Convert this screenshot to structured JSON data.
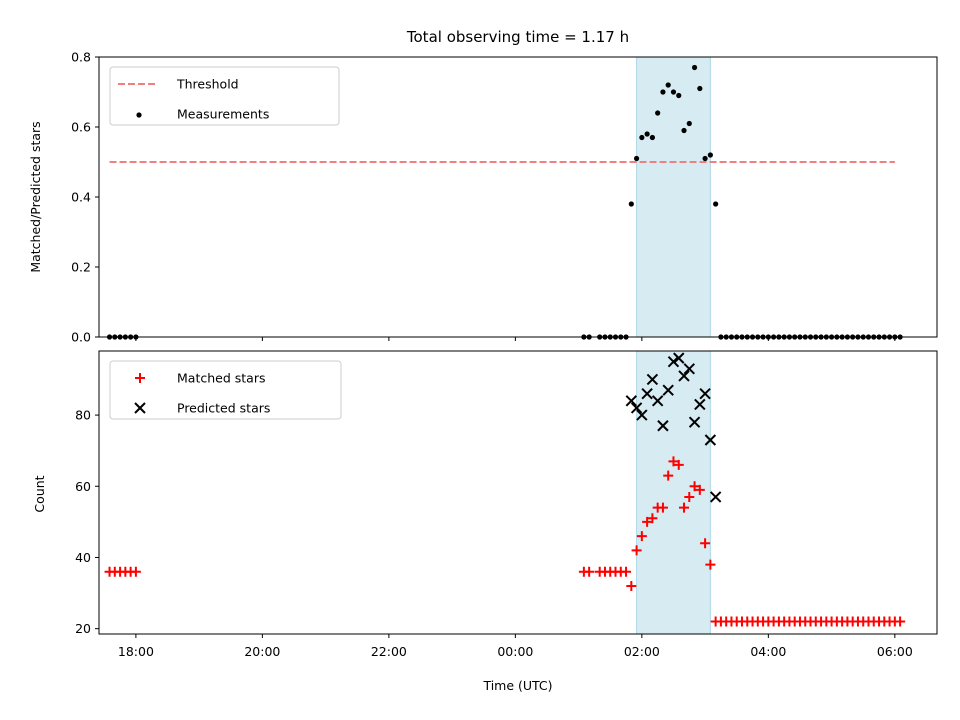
{
  "chart_data": [
    {
      "type": "scatter",
      "title": "Total observing time = 1.17 h",
      "ylabel": "Matched/Predicted stars",
      "xlabel": "",
      "ylim": [
        0,
        0.8
      ],
      "yticks": [
        "0.0",
        "0.2",
        "0.4",
        "0.6",
        "0.8"
      ],
      "xlim": [
        "17:25",
        "06:40"
      ],
      "highlight_span": [
        "01:55",
        "03:05"
      ],
      "legend": {
        "placement": "upper-left",
        "entries": [
          "Threshold",
          "Measurements"
        ]
      },
      "threshold": {
        "name": "Threshold",
        "x": [
          "17:35",
          "06:00"
        ],
        "y": 0.5,
        "color": "#f08080"
      },
      "series": [
        {
          "name": "Measurements",
          "color": "#000000",
          "x": [
            "17:35",
            "17:40",
            "17:45",
            "17:50",
            "17:55",
            "18:00",
            "01:05",
            "01:10",
            "01:20",
            "01:25",
            "01:30",
            "01:35",
            "01:40",
            "01:45",
            "01:50",
            "01:55",
            "02:00",
            "02:05",
            "02:10",
            "02:15",
            "02:20",
            "02:25",
            "02:30",
            "02:35",
            "02:40",
            "02:45",
            "02:50",
            "02:55",
            "03:00",
            "03:05",
            "03:10",
            "03:15",
            "03:20",
            "03:25",
            "03:30",
            "03:35",
            "03:40",
            "03:45",
            "03:50",
            "03:55",
            "04:00",
            "04:05",
            "04:10",
            "04:15",
            "04:20",
            "04:25",
            "04:30",
            "04:35",
            "04:40",
            "04:45",
            "04:50",
            "04:55",
            "05:00",
            "05:05",
            "05:10",
            "05:15",
            "05:20",
            "05:25",
            "05:30",
            "05:35",
            "05:40",
            "05:45",
            "05:50",
            "05:55",
            "06:00",
            "06:05"
          ],
          "y": [
            0,
            0,
            0,
            0,
            0,
            0,
            0,
            0,
            0,
            0,
            0,
            0,
            0,
            0,
            0.38,
            0.51,
            0.57,
            0.58,
            0.57,
            0.64,
            0.7,
            0.72,
            0.7,
            0.69,
            0.59,
            0.61,
            0.77,
            0.71,
            0.51,
            0.52,
            0.38,
            0,
            0,
            0,
            0,
            0,
            0,
            0,
            0,
            0,
            0,
            0,
            0,
            0,
            0,
            0,
            0,
            0,
            0,
            0,
            0,
            0,
            0,
            0,
            0,
            0,
            0,
            0,
            0,
            0,
            0,
            0,
            0,
            0,
            0,
            0
          ]
        }
      ]
    },
    {
      "type": "scatter",
      "title": "",
      "xlabel": "Time (UTC)",
      "ylabel": "Count",
      "ylim": [
        18.5,
        98
      ],
      "yticks": [
        "20",
        "40",
        "60",
        "80"
      ],
      "xlim": [
        "17:25",
        "06:40"
      ],
      "xticks": [
        "18:00",
        "20:00",
        "22:00",
        "00:00",
        "02:00",
        "04:00",
        "06:00"
      ],
      "highlight_span": [
        "01:55",
        "03:05"
      ],
      "legend": {
        "placement": "upper-left",
        "entries": [
          "Matched stars",
          "Predicted stars"
        ]
      },
      "series": [
        {
          "name": "Matched stars",
          "color": "#ff0000",
          "marker": "plus",
          "x": [
            "17:35",
            "17:40",
            "17:45",
            "17:50",
            "17:55",
            "18:00",
            "01:05",
            "01:10",
            "01:20",
            "01:25",
            "01:30",
            "01:35",
            "01:40",
            "01:45",
            "01:50",
            "01:55",
            "02:00",
            "02:05",
            "02:10",
            "02:15",
            "02:20",
            "02:25",
            "02:30",
            "02:35",
            "02:40",
            "02:45",
            "02:50",
            "02:55",
            "03:00",
            "03:05",
            "03:10",
            "03:15",
            "03:20",
            "03:25",
            "03:30",
            "03:35",
            "03:40",
            "03:45",
            "03:50",
            "03:55",
            "04:00",
            "04:05",
            "04:10",
            "04:15",
            "04:20",
            "04:25",
            "04:30",
            "04:35",
            "04:40",
            "04:45",
            "04:50",
            "04:55",
            "05:00",
            "05:05",
            "05:10",
            "05:15",
            "05:20",
            "05:25",
            "05:30",
            "05:35",
            "05:40",
            "05:45",
            "05:50",
            "05:55",
            "06:00",
            "06:05"
          ],
          "y": [
            36,
            36,
            36,
            36,
            36,
            36,
            36,
            36,
            36,
            36,
            36,
            36,
            36,
            36,
            32,
            42,
            46,
            50,
            51,
            54,
            54,
            63,
            67,
            66,
            54,
            57,
            60,
            59,
            44,
            38,
            22,
            22,
            22,
            22,
            22,
            22,
            22,
            22,
            22,
            22,
            22,
            22,
            22,
            22,
            22,
            22,
            22,
            22,
            22,
            22,
            22,
            22,
            22,
            22,
            22,
            22,
            22,
            22,
            22,
            22,
            22,
            22,
            22,
            22,
            22,
            22
          ]
        },
        {
          "name": "Predicted stars",
          "color": "#000000",
          "marker": "x",
          "x": [
            "01:50",
            "01:55",
            "02:00",
            "02:05",
            "02:10",
            "02:15",
            "02:20",
            "02:25",
            "02:30",
            "02:35",
            "02:40",
            "02:45",
            "02:50",
            "02:55",
            "03:00",
            "03:05",
            "03:10"
          ],
          "y": [
            84,
            82,
            80,
            86,
            90,
            84,
            77,
            87,
            95,
            96,
            91,
            93,
            78,
            83,
            86,
            73,
            57
          ]
        }
      ]
    }
  ]
}
